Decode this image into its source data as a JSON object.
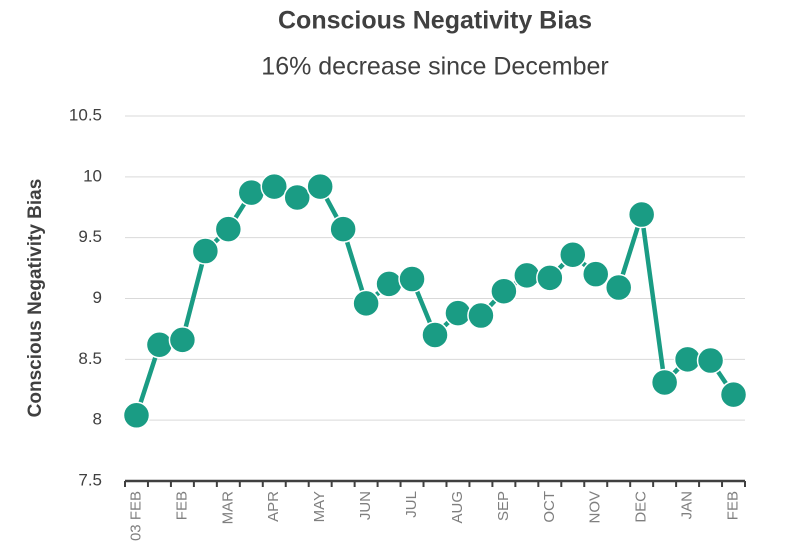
{
  "chart_data": {
    "type": "line",
    "title": "Conscious Negativity Bias",
    "subtitle": "16% decrease since December",
    "y_label": "Conscious Negativity Bias",
    "categories": [
      "03 FEB",
      null,
      "FEB",
      null,
      "MAR",
      null,
      "APR",
      null,
      "MAY",
      null,
      "JUN",
      null,
      "JUL",
      null,
      "AUG",
      null,
      "SEP",
      null,
      "OCT",
      null,
      "NOV",
      null,
      "DEC",
      null,
      "JAN",
      null,
      "FEB"
    ],
    "series": [
      {
        "name": "Conscious Negativity Bias",
        "color": "#1a9c84",
        "values": [
          8.04,
          8.62,
          8.66,
          9.39,
          9.57,
          9.87,
          9.92,
          9.83,
          9.92,
          9.57,
          8.96,
          9.12,
          9.16,
          8.7,
          8.88,
          8.86,
          9.06,
          9.19,
          9.17,
          9.36,
          9.2,
          9.09,
          9.69,
          8.31,
          8.5,
          8.49,
          8.21
        ]
      }
    ],
    "ylim": [
      7.5,
      10.5
    ],
    "yticks": [
      7.5,
      8,
      8.5,
      9,
      9.5,
      10,
      10.5
    ],
    "grid": true
  }
}
